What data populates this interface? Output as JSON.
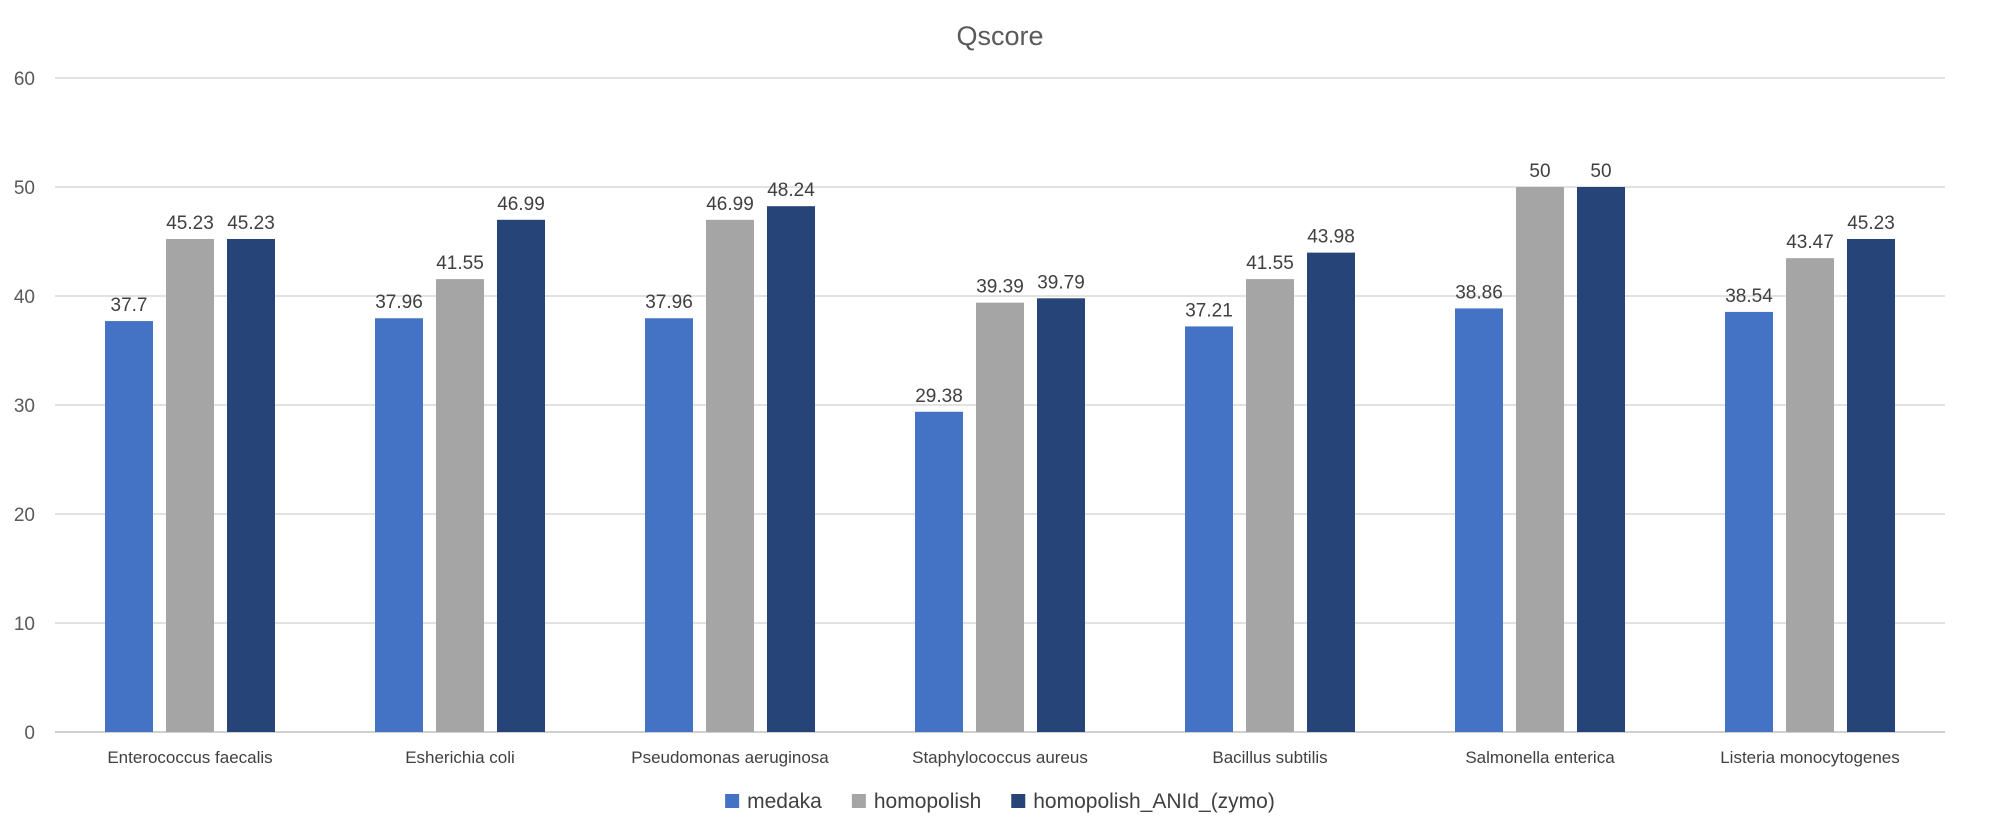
{
  "chart_data": {
    "type": "bar",
    "title": "Qscore",
    "xlabel": "",
    "ylabel": "",
    "ylim": [
      0,
      60
    ],
    "yticks": [
      0,
      10,
      20,
      30,
      40,
      50,
      60
    ],
    "grid": true,
    "legend_position": "bottom",
    "categories": [
      "Enterococcus faecalis",
      "Esherichia coli",
      "Pseudomonas aeruginosa",
      "Staphylococcus aureus",
      "Bacillus subtilis",
      "Salmonella enterica",
      "Listeria monocytogenes"
    ],
    "series": [
      {
        "name": "medaka",
        "color": "#4472c4",
        "values": [
          37.7,
          37.96,
          37.96,
          29.38,
          37.21,
          38.86,
          38.54
        ]
      },
      {
        "name": "homopolish",
        "color": "#a5a5a5",
        "values": [
          45.23,
          41.55,
          46.99,
          39.39,
          41.55,
          50,
          43.47
        ]
      },
      {
        "name": "homopolish_ANId_(zymo)",
        "color": "#264478",
        "values": [
          45.23,
          46.99,
          48.24,
          39.79,
          43.98,
          50,
          45.23
        ]
      }
    ]
  }
}
